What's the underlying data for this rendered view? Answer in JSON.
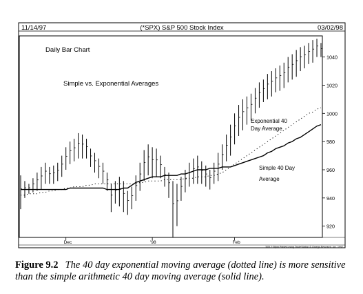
{
  "chart_data": {
    "type": "bar",
    "subtype": "ohlc-daily-bars-with-moving-averages",
    "title": "(*SPX) S&P 500 Stock Index",
    "date_left": "11/14/97",
    "date_right": "03/02/98",
    "labels": {
      "chart_kind": "Daily Bar Chart",
      "subtitle": "Simple vs. Exponential Averages",
      "exp_label_line1": "Exponential 40",
      "exp_label_line2": "Day Average",
      "simple_label_line1": "Simple 40 Day",
      "simple_label_line2": "Average"
    },
    "y_ticks": [
      920,
      940,
      960,
      980,
      1000,
      1020,
      1040
    ],
    "ylim": [
      912,
      1055
    ],
    "x_ticks": [
      {
        "label": "Dec",
        "index": 11
      },
      {
        "label": "'98",
        "index": 32
      },
      {
        "label": "Feb",
        "index": 52
      }
    ],
    "bars": [
      [
        956,
        932
      ],
      [
        952,
        940
      ],
      [
        950,
        943
      ],
      [
        954,
        944
      ],
      [
        958,
        945
      ],
      [
        962,
        946
      ],
      [
        965,
        950
      ],
      [
        962,
        950
      ],
      [
        963,
        950
      ],
      [
        965,
        952
      ],
      [
        970,
        955
      ],
      [
        976,
        960
      ],
      [
        980,
        964
      ],
      [
        982,
        966
      ],
      [
        986,
        968
      ],
      [
        985,
        968
      ],
      [
        982,
        968
      ],
      [
        975,
        962
      ],
      [
        972,
        958
      ],
      [
        968,
        954
      ],
      [
        965,
        950
      ],
      [
        958,
        945
      ],
      [
        950,
        930
      ],
      [
        952,
        936
      ],
      [
        955,
        934
      ],
      [
        952,
        930
      ],
      [
        945,
        928
      ],
      [
        948,
        932
      ],
      [
        956,
        938
      ],
      [
        965,
        945
      ],
      [
        974,
        952
      ],
      [
        978,
        956
      ],
      [
        976,
        954
      ],
      [
        975,
        955
      ],
      [
        970,
        954
      ],
      [
        962,
        948
      ],
      [
        958,
        940
      ],
      [
        952,
        912
      ],
      [
        950,
        920
      ],
      [
        955,
        938
      ],
      [
        960,
        944
      ],
      [
        965,
        948
      ],
      [
        968,
        950
      ],
      [
        970,
        950
      ],
      [
        966,
        950
      ],
      [
        963,
        948
      ],
      [
        960,
        946
      ],
      [
        965,
        950
      ],
      [
        972,
        952
      ],
      [
        978,
        960
      ],
      [
        985,
        966
      ],
      [
        992,
        970
      ],
      [
        1000,
        978
      ],
      [
        1006,
        984
      ],
      [
        1010,
        988
      ],
      [
        1012,
        992
      ],
      [
        1014,
        995
      ],
      [
        1018,
        1000
      ],
      [
        1022,
        1004
      ],
      [
        1024,
        1008
      ],
      [
        1028,
        1010
      ],
      [
        1030,
        1012
      ],
      [
        1032,
        1015
      ],
      [
        1034,
        1016
      ],
      [
        1036,
        1018
      ],
      [
        1040,
        1022
      ],
      [
        1042,
        1024
      ],
      [
        1045,
        1026
      ],
      [
        1047,
        1030
      ],
      [
        1048,
        1032
      ],
      [
        1050,
        1035
      ],
      [
        1052,
        1036
      ],
      [
        1053,
        1040
      ],
      [
        1050,
        1040
      ]
    ],
    "series": [
      {
        "values": [
          946,
          946,
          946,
          946,
          946,
          946,
          946,
          946,
          946,
          946,
          946,
          946,
          947,
          947,
          947,
          947,
          947,
          947,
          947,
          947,
          947,
          946,
          946,
          946,
          946,
          947,
          947,
          949,
          951,
          952,
          953,
          954,
          955,
          955,
          955,
          956,
          956,
          956,
          956,
          957,
          957,
          958,
          959,
          960,
          960,
          960,
          961,
          961,
          961,
          962,
          962,
          962,
          963,
          964,
          965,
          966,
          967,
          968,
          969,
          970,
          972,
          973,
          975,
          976,
          977,
          979,
          980,
          982,
          983,
          985,
          987,
          989,
          991,
          992
        ]
      },
      {
        "values": [
          942,
          942,
          943,
          943,
          943,
          944,
          944,
          945,
          945,
          946,
          946,
          947,
          947,
          948,
          948,
          948,
          949,
          949,
          950,
          950,
          950,
          950,
          950,
          950,
          950,
          950,
          950,
          950,
          950,
          951,
          951,
          952,
          952,
          952,
          952,
          953,
          953,
          953,
          953,
          953,
          954,
          954,
          954,
          955,
          955,
          955,
          956,
          956,
          957,
          958,
          960,
          962,
          964,
          966,
          968,
          970,
          972,
          974,
          976,
          978,
          980,
          982,
          984,
          986,
          988,
          990,
          992,
          994,
          996,
          998,
          1000,
          1001,
          1003,
          1004
        ]
      }
    ],
    "footer_note": "3/05 2:38pm Printed using TradeStation © Omega Research, Inc. 1997"
  },
  "caption": {
    "number": "Figure 9.2",
    "text": "The 40 day exponential moving average (dotted line) is more sensitive than the simple arithmetic 40 day moving average (solid line)."
  }
}
